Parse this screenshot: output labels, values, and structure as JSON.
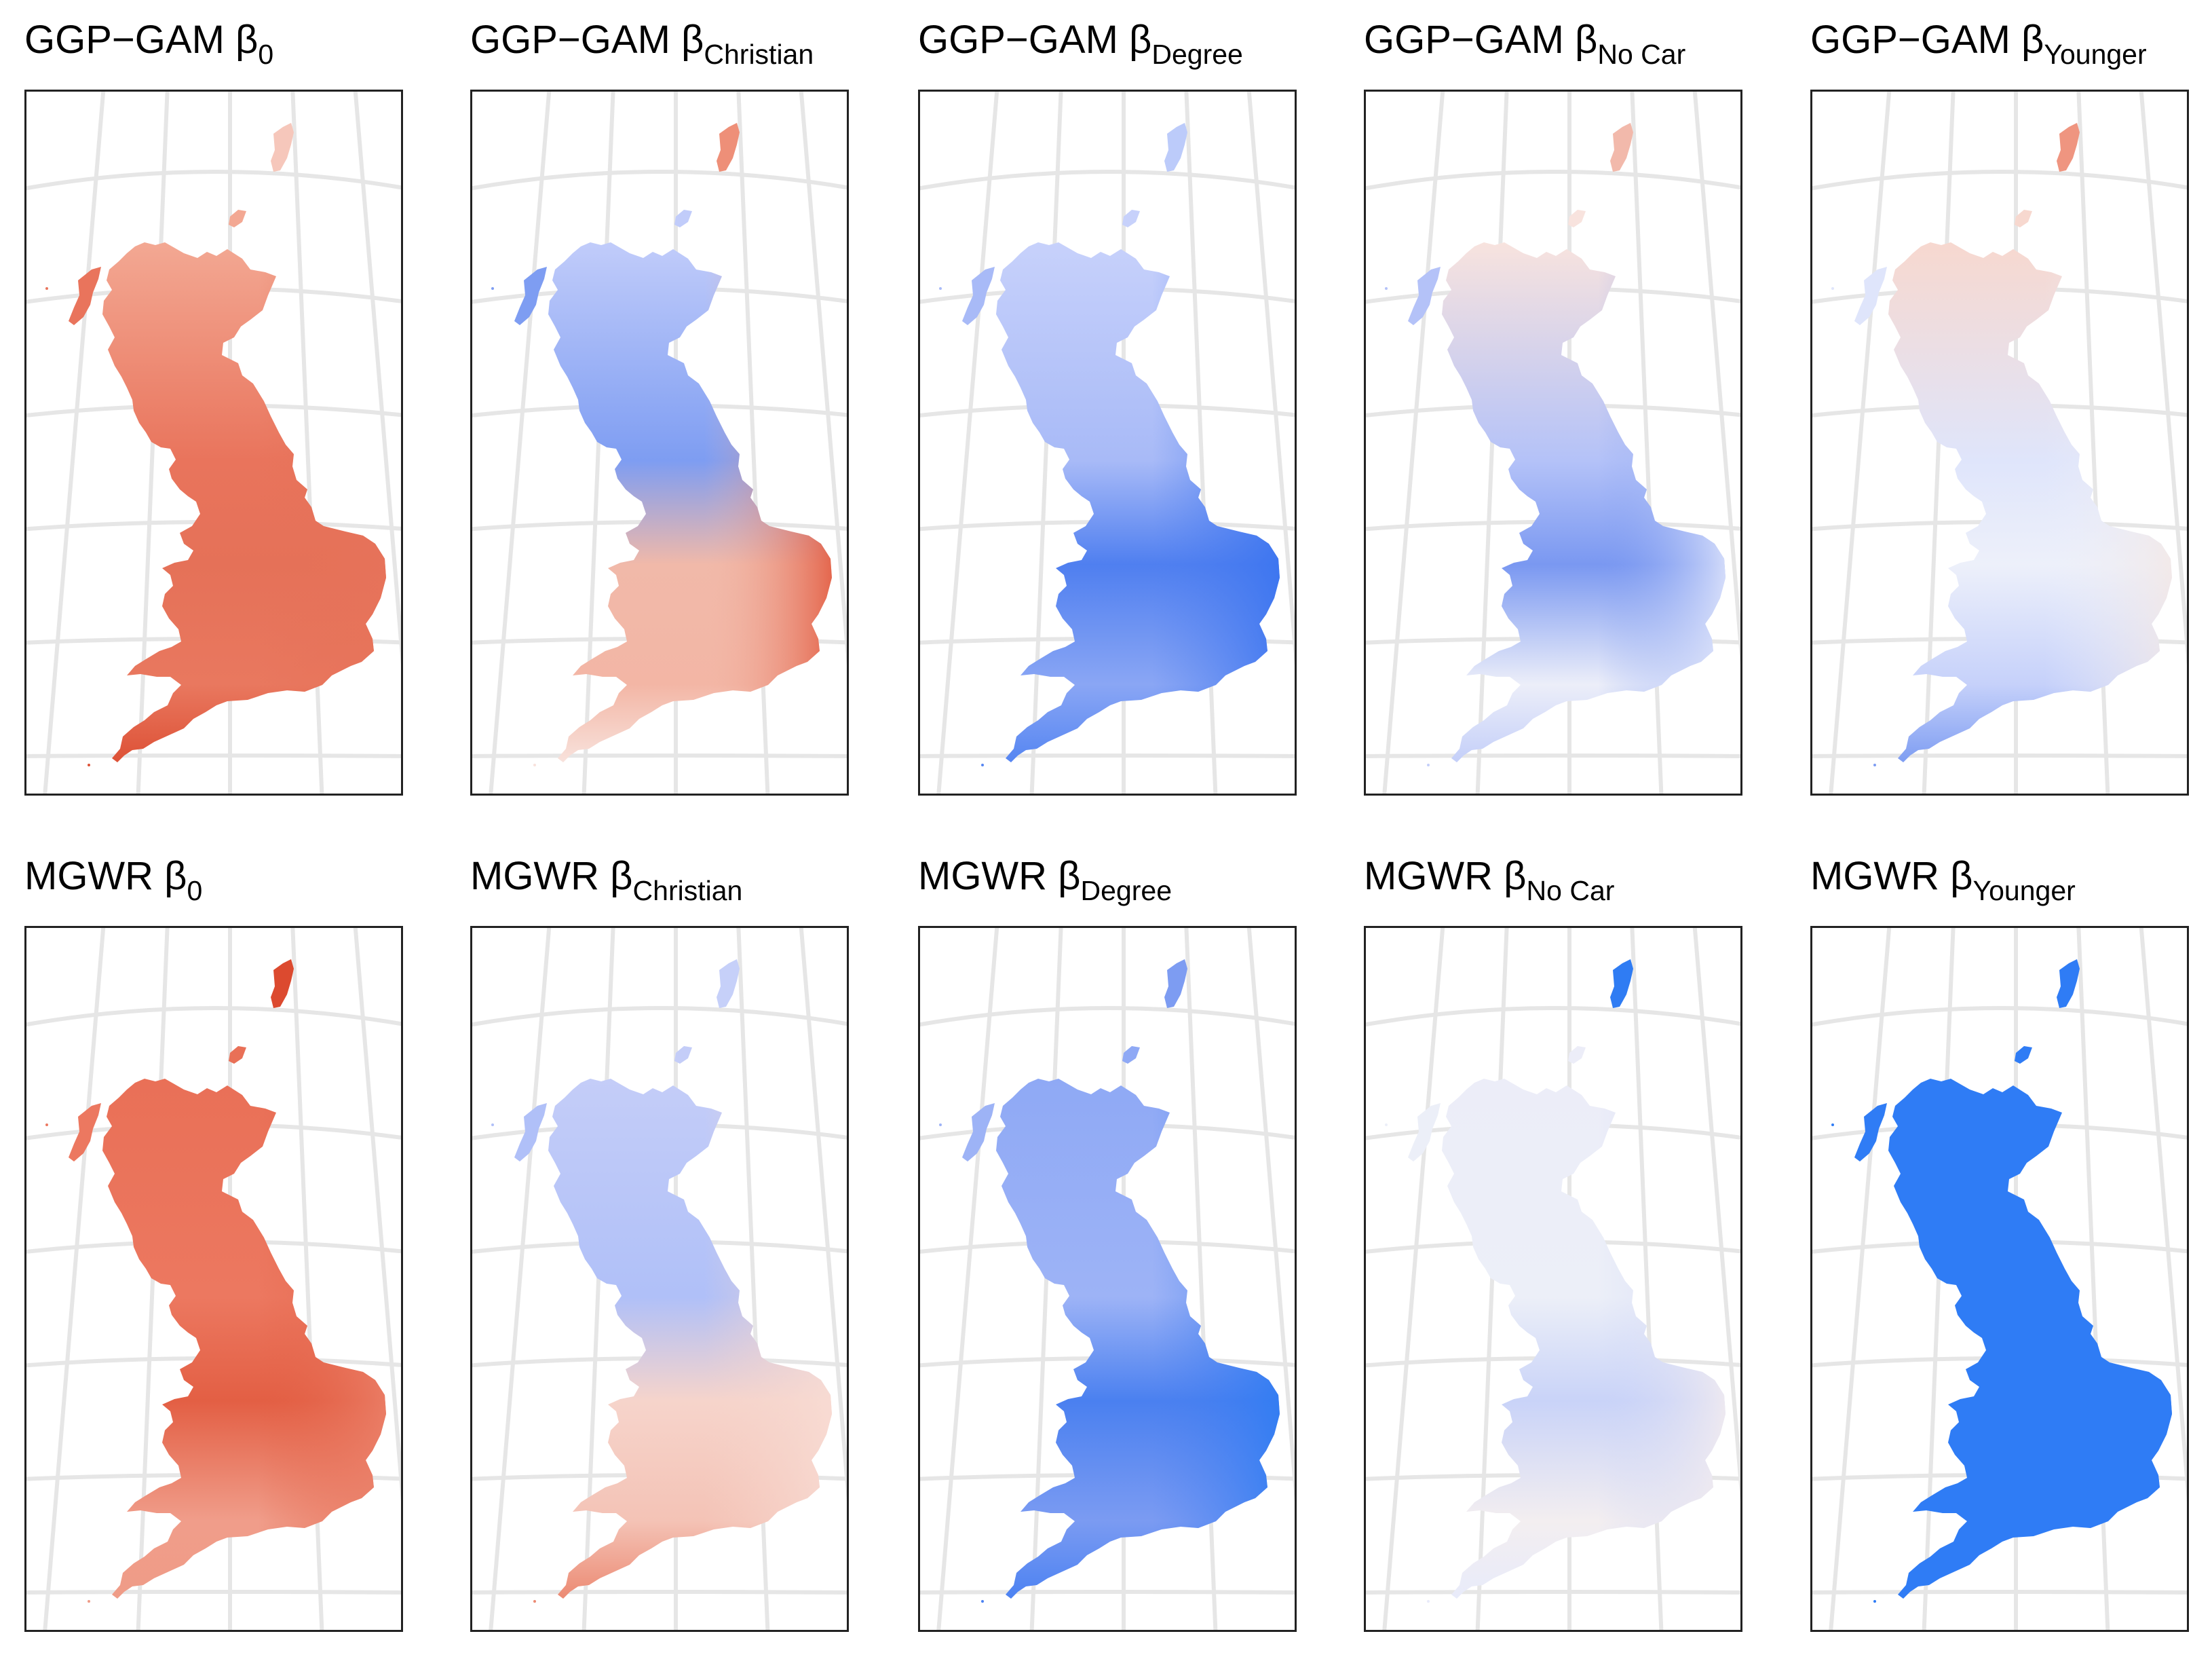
{
  "grid": {
    "rows": [
      {
        "method": "GGP-GAM",
        "panels": [
          {
            "title_main": "GGP−GAM β",
            "subscript": "0",
            "colors": {
              "north": "#f3a893",
              "west": "#e9745c",
              "center": "#e57158",
              "east": "#e7735a",
              "southwest": "#dd5136",
              "south": "#e9785f",
              "shetland": "#f6c7bb"
            }
          },
          {
            "title_main": "GGP−GAM β",
            "subscript": "Christian",
            "colors": {
              "north": "#c1ccfa",
              "west": "#7e9df2",
              "center": "#f1b9a9",
              "east": "#e2593e",
              "southwest": "#f8e2dc",
              "south": "#f3b6a5",
              "shetland": "#ee8f78"
            }
          },
          {
            "title_main": "GGP−GAM β",
            "subscript": "Degree",
            "colors": {
              "north": "#c7d1fb",
              "west": "#a8baf7",
              "center": "#4f7ff0",
              "east": "#3a74f0",
              "southwest": "#5686f2",
              "south": "#8aa6f4",
              "shetland": "#bccbfa"
            }
          },
          {
            "title_main": "GGP−GAM β",
            "subscript": "No Car",
            "colors": {
              "north": "#f8e3de",
              "west": "#b4c2f8",
              "center": "#7a98f1",
              "east": "#e1e6fb",
              "southwest": "#c4cff9",
              "south": "#eceef9",
              "shetland": "#f2b9ab"
            }
          },
          {
            "title_main": "GGP−GAM β",
            "subscript": "Younger",
            "colors": {
              "north": "#f7d8cf",
              "west": "#dfe5fb",
              "center": "#edf0fa",
              "east": "#f3e8e6",
              "southwest": "#7e9df2",
              "south": "#c6d1fa",
              "shetland": "#ef9580"
            }
          }
        ]
      },
      {
        "method": "MGWR",
        "panels": [
          {
            "title_main": "MGWR β",
            "subscript": "0",
            "colors": {
              "north": "#e97057",
              "west": "#ec7860",
              "center": "#e35f44",
              "east": "#eb8069",
              "southwest": "#ef9c87",
              "south": "#f09d8a",
              "shetland": "#dc4a2f"
            }
          },
          {
            "title_main": "MGWR β",
            "subscript": "Christian",
            "colors": {
              "north": "#c4cdf8",
              "west": "#b0c0f8",
              "center": "#f6d4cb",
              "east": "#f8dcd4",
              "southwest": "#ec8a73",
              "south": "#f4c3b6",
              "shetland": "#c6d0f9"
            }
          },
          {
            "title_main": "MGWR β",
            "subscript": "Degree",
            "colors": {
              "north": "#8fa9f5",
              "west": "#9db3f6",
              "center": "#4a80f0",
              "east": "#2f7cf3",
              "southwest": "#4c82f2",
              "south": "#7b9bf2",
              "shetland": "#7d9cf2"
            }
          },
          {
            "title_main": "MGWR β",
            "subscript": "No Car",
            "colors": {
              "north": "#ecedf8",
              "west": "#eceff8",
              "center": "#c9d3f8",
              "east": "#f3ecef",
              "southwest": "#e8ebfa",
              "south": "#f3eef0",
              "shetland": "#2f7cf3"
            }
          },
          {
            "title_main": "MGWR β",
            "subscript": "Younger",
            "colors": {
              "north": "#2f7cf5",
              "west": "#2f7cf5",
              "center": "#2f7cf5",
              "east": "#2f7cf5",
              "southwest": "#2f7cf5",
              "south": "#2f7cf5",
              "shetland": "#2f7cf5"
            }
          }
        ]
      }
    ]
  }
}
